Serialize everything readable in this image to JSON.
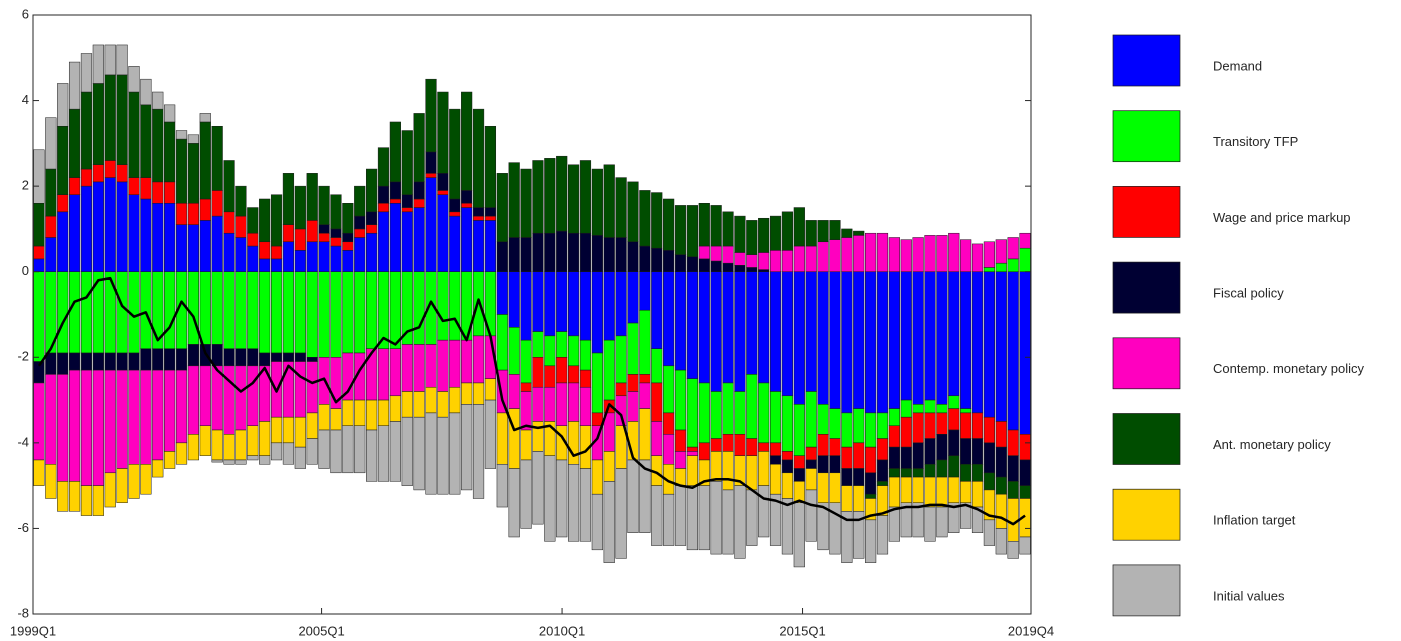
{
  "chart_data": {
    "type": "stacked_bar",
    "categories": [
      "1999Q1",
      null,
      null,
      null,
      null,
      null,
      null,
      null,
      null,
      null,
      null,
      null,
      null,
      null,
      null,
      null,
      null,
      null,
      null,
      null,
      null,
      null,
      null,
      null,
      "2005Q1",
      null,
      null,
      null,
      null,
      null,
      null,
      null,
      null,
      null,
      null,
      null,
      null,
      null,
      null,
      null,
      null,
      null,
      null,
      null,
      "2010Q1",
      null,
      null,
      null,
      null,
      null,
      null,
      null,
      null,
      null,
      null,
      null,
      null,
      null,
      null,
      null,
      null,
      null,
      null,
      null,
      "2015Q1",
      null,
      null,
      null,
      null,
      null,
      null,
      null,
      null,
      null,
      null,
      null,
      null,
      null,
      null,
      null,
      null,
      null,
      null,
      "2019Q4"
    ],
    "ylim": [
      -8,
      6
    ],
    "yticks": [
      -8,
      -6,
      -4,
      -2,
      0,
      2,
      4,
      6
    ],
    "legend": "right",
    "series": [
      {
        "name": "Demand",
        "color": "#0000ff",
        "values": [
          0.3,
          0.8,
          1.4,
          1.8,
          2.0,
          2.1,
          2.2,
          2.1,
          1.8,
          1.7,
          1.6,
          1.6,
          1.1,
          1.1,
          1.2,
          1.3,
          0.9,
          0.8,
          0.6,
          0.3,
          0.3,
          0.7,
          0.5,
          0.7,
          0.7,
          0.6,
          0.5,
          0.8,
          0.9,
          1.4,
          1.6,
          1.4,
          1.5,
          2.2,
          1.8,
          1.3,
          1.5,
          1.2,
          1.2,
          -1.0,
          -1.3,
          -1.6,
          -1.4,
          -1.5,
          -1.4,
          -1.5,
          -1.6,
          -1.9,
          -1.6,
          -1.5,
          -1.2,
          -0.9,
          -1.8,
          -2.2,
          -2.3,
          -2.5,
          -2.6,
          -2.8,
          -2.6,
          -2.8,
          -2.4,
          -2.6,
          -2.8,
          -2.9,
          -3.1,
          -2.8,
          -3.1,
          -3.2,
          -3.3,
          -3.2,
          -3.3,
          -3.3,
          -3.2,
          -3.0,
          -3.1,
          -3.0,
          -3.1,
          -2.9,
          -3.2,
          -3.3,
          -3.4,
          -3.5,
          -3.7,
          -3.8
        ]
      },
      {
        "name": "Transitory TFP",
        "color": "#00ff00",
        "values": [
          -2.1,
          -1.9,
          -1.9,
          -1.9,
          -1.9,
          -1.9,
          -1.9,
          -1.9,
          -1.9,
          -1.8,
          -1.8,
          -1.8,
          -1.8,
          -1.7,
          -1.7,
          -1.7,
          -1.8,
          -1.8,
          -1.8,
          -1.9,
          -1.9,
          -1.9,
          -1.9,
          -2.0,
          -2.0,
          -2.0,
          -1.9,
          -1.9,
          -1.8,
          -1.8,
          -1.8,
          -1.7,
          -1.7,
          -1.7,
          -1.6,
          -1.6,
          -1.6,
          -1.5,
          -1.5,
          -1.3,
          -1.1,
          -1.0,
          -0.6,
          -0.7,
          -0.6,
          -0.7,
          -0.7,
          -1.4,
          -1.4,
          -1.1,
          -1.2,
          -1.5,
          -0.8,
          -1.1,
          -1.4,
          -1.6,
          -1.4,
          -1.1,
          -1.2,
          -1.0,
          -1.5,
          -1.4,
          -1.2,
          -1.3,
          -1.2,
          -1.3,
          -0.7,
          -0.7,
          -0.8,
          -0.8,
          -0.8,
          -0.6,
          -0.4,
          -0.4,
          -0.2,
          -0.3,
          -0.2,
          -0.3,
          -0.1,
          0,
          0.1,
          0.2,
          0.3,
          0.55
        ]
      },
      {
        "name": "Wage and price markup",
        "color": "#ff0000",
        "values": [
          0.3,
          0.5,
          0.4,
          0.4,
          0.4,
          0.4,
          0.4,
          0.4,
          0.4,
          0.5,
          0.5,
          0.5,
          0.5,
          0.5,
          0.5,
          0.6,
          0.5,
          0.5,
          0.3,
          0.4,
          0.3,
          0.4,
          0.5,
          0.5,
          0.2,
          0.2,
          0.2,
          0.2,
          0.2,
          0.2,
          0.1,
          0.1,
          0.2,
          0.1,
          0.1,
          0.1,
          0.1,
          0.1,
          0.1,
          0,
          0,
          -0.2,
          -0.7,
          -0.5,
          -0.6,
          -0.4,
          -0.4,
          -0.3,
          -0.3,
          -0.3,
          -0.4,
          -0.2,
          -0.9,
          -0.5,
          -0.5,
          -0.1,
          -0.4,
          -0.3,
          -0.4,
          -0.5,
          -0.4,
          -0.2,
          -0.3,
          -0.2,
          -0.3,
          -0.3,
          -0.5,
          -0.4,
          -0.5,
          -0.6,
          -0.6,
          -0.5,
          -0.5,
          -0.7,
          -0.7,
          -0.6,
          -0.5,
          -0.5,
          -0.6,
          -0.6,
          -0.6,
          -0.6,
          -0.6,
          -0.6
        ]
      },
      {
        "name": "Fiscal policy",
        "color": "#000033",
        "values": [
          -0.5,
          -0.5,
          -0.5,
          -0.4,
          -0.4,
          -0.4,
          -0.4,
          -0.4,
          -0.4,
          -0.5,
          -0.5,
          -0.5,
          -0.5,
          -0.5,
          -0.5,
          -0.5,
          -0.4,
          -0.4,
          -0.4,
          -0.3,
          -0.2,
          -0.2,
          -0.2,
          -0.1,
          0.2,
          0.2,
          0.2,
          0.3,
          0.3,
          0.4,
          0.4,
          0.3,
          0.4,
          0.5,
          0.4,
          0.3,
          0.3,
          0.2,
          0.2,
          0.7,
          0.8,
          0.8,
          0.9,
          0.9,
          0.95,
          0.9,
          0.9,
          0.85,
          0.8,
          0.8,
          0.7,
          0.6,
          0.55,
          0.5,
          0.4,
          0.35,
          0.3,
          0.25,
          0.2,
          0.15,
          0.1,
          0.05,
          -0.2,
          -0.3,
          -0.3,
          -0.2,
          -0.4,
          -0.4,
          -0.4,
          -0.4,
          -0.5,
          -0.5,
          -0.5,
          -0.5,
          -0.6,
          -0.6,
          -0.6,
          -0.6,
          -0.6,
          -0.6,
          -0.7,
          -0.7,
          -0.6,
          -0.6
        ]
      },
      {
        "name": "Contemp. monetary policy",
        "color": "#ff00bf",
        "values": [
          -1.8,
          -2.1,
          -2.5,
          -2.6,
          -2.7,
          -2.7,
          -2.4,
          -2.3,
          -2.2,
          -2.2,
          -2.1,
          -1.9,
          -1.7,
          -1.6,
          -1.4,
          -1.5,
          -1.6,
          -1.5,
          -1.4,
          -1.3,
          -1.3,
          -1.3,
          -1.3,
          -1.2,
          -1.1,
          -1.2,
          -1.1,
          -1.1,
          -1.2,
          -1.2,
          -1.1,
          -1.1,
          -1.1,
          -1.0,
          -1.2,
          -1.1,
          -1.0,
          -1.1,
          -1.0,
          -1.0,
          -0.8,
          -0.9,
          -0.8,
          -0.8,
          -1.0,
          -0.9,
          -0.9,
          -0.8,
          -0.9,
          -0.7,
          -0.7,
          -0.6,
          -0.8,
          -0.7,
          -0.4,
          -0.1,
          0.3,
          0.35,
          0.4,
          0.3,
          0.3,
          0.4,
          0.5,
          0.5,
          0.6,
          0.6,
          0.7,
          0.75,
          0.8,
          0.85,
          0.9,
          0.9,
          0.8,
          0.75,
          0.8,
          0.85,
          0.85,
          0.9,
          0.75,
          0.65,
          0.6,
          0.55,
          0.5,
          0.35
        ]
      },
      {
        "name": "Ant. monetary policy",
        "color": "#004d00",
        "values": [
          1.0,
          1.1,
          1.6,
          1.6,
          1.8,
          1.9,
          2.0,
          2.1,
          2.0,
          1.7,
          1.7,
          1.4,
          1.5,
          1.4,
          1.8,
          1.5,
          1.2,
          0.7,
          0.6,
          1.0,
          1.2,
          1.2,
          1.0,
          1.1,
          0.9,
          0.8,
          0.7,
          0.7,
          1.0,
          0.9,
          1.4,
          1.5,
          1.6,
          1.7,
          1.9,
          2.1,
          2.3,
          2.3,
          1.9,
          1.6,
          1.75,
          1.6,
          1.7,
          1.75,
          1.75,
          1.6,
          1.7,
          1.55,
          1.7,
          1.4,
          1.4,
          1.3,
          1.3,
          1.2,
          1.15,
          1.2,
          1.0,
          0.95,
          0.8,
          0.85,
          0.8,
          0.8,
          0.8,
          0.9,
          0.9,
          0.6,
          0.5,
          0.45,
          0.2,
          0.1,
          -0.1,
          -0.1,
          -0.2,
          -0.2,
          -0.2,
          -0.3,
          -0.4,
          -0.5,
          -0.4,
          -0.4,
          -0.4,
          -0.4,
          -0.4,
          -0.3
        ]
      },
      {
        "name": "Inflation target",
        "color": "#ffd200",
        "values": [
          -0.6,
          -0.8,
          -0.7,
          -0.7,
          -0.7,
          -0.7,
          -0.8,
          -0.8,
          -0.8,
          -0.7,
          -0.4,
          -0.4,
          -0.5,
          -0.6,
          -0.7,
          -0.7,
          -0.6,
          -0.7,
          -0.7,
          -0.8,
          -0.6,
          -0.6,
          -0.7,
          -0.6,
          -0.6,
          -0.5,
          -0.6,
          -0.6,
          -0.7,
          -0.6,
          -0.6,
          -0.6,
          -0.6,
          -0.6,
          -0.6,
          -0.6,
          -0.5,
          -0.5,
          -0.5,
          -1.2,
          -1.4,
          -0.7,
          -0.7,
          -0.8,
          -0.8,
          -1.0,
          -1.0,
          -0.8,
          -0.7,
          -1.0,
          -0.9,
          -1.2,
          -0.7,
          -0.7,
          -0.4,
          -0.7,
          -0.6,
          -0.7,
          -0.9,
          -0.7,
          -0.8,
          -0.8,
          -0.7,
          -0.6,
          -0.5,
          -0.5,
          -0.7,
          -0.7,
          -0.6,
          -0.6,
          -0.5,
          -0.7,
          -0.7,
          -0.6,
          -0.6,
          -0.7,
          -0.7,
          -0.6,
          -0.5,
          -0.6,
          -0.7,
          -0.8,
          -1.0,
          -0.9
        ]
      },
      {
        "name": "Initial values",
        "color": "#b3b3b3",
        "values": [
          1.25,
          1.2,
          1.0,
          1.1,
          0.9,
          0.9,
          0.7,
          0.7,
          0.6,
          0.6,
          0.4,
          0.4,
          0.2,
          0.2,
          0.2,
          -0.05,
          -0.1,
          -0.1,
          -0.1,
          -0.2,
          -0.4,
          -0.5,
          -0.5,
          -0.6,
          -0.9,
          -1.0,
          -1.1,
          -1.1,
          -1.2,
          -1.3,
          -1.4,
          -1.6,
          -1.7,
          -1.9,
          -1.8,
          -1.9,
          -2.0,
          -2.2,
          -1.6,
          -1.0,
          -1.6,
          -1.6,
          -1.7,
          -2.0,
          -1.8,
          -1.8,
          -1.7,
          -1.3,
          -1.9,
          -2.1,
          -1.7,
          -1.7,
          -1.4,
          -1.2,
          -1.4,
          -1.5,
          -1.5,
          -1.7,
          -1.5,
          -1.7,
          -1.3,
          -1.2,
          -1.2,
          -1.3,
          -1.5,
          -1.2,
          -1.1,
          -1.2,
          -1.2,
          -1.1,
          -1.0,
          -0.9,
          -0.8,
          -0.8,
          -0.8,
          -0.8,
          -0.7,
          -0.7,
          -0.6,
          -0.6,
          -0.6,
          -0.6,
          -0.4,
          -0.4
        ]
      }
    ],
    "line": {
      "color": "#000000",
      "values": [
        -2.2,
        -1.8,
        -1.2,
        -0.7,
        -0.6,
        -0.2,
        -0.15,
        -0.8,
        -1.05,
        -0.95,
        -1.6,
        -1.3,
        -0.7,
        -1.05,
        -1.9,
        -2.3,
        -2.55,
        -2.8,
        -2.6,
        -2.25,
        -2.8,
        -2.2,
        -2.45,
        -2.6,
        -2.5,
        -3.05,
        -2.8,
        -2.3,
        -1.9,
        -1.55,
        -1.7,
        -1.4,
        -1.3,
        -0.7,
        -1.15,
        -1.1,
        -1.6,
        -0.65,
        -1.5,
        -3.0,
        -3.7,
        -3.6,
        -3.65,
        -3.6,
        -3.85,
        -4.3,
        -4.2,
        -3.9,
        -3.1,
        -3.35,
        -4.35,
        -4.6,
        -4.7,
        -4.9,
        -5.0,
        -5.05,
        -4.9,
        -4.85,
        -4.85,
        -4.9,
        -5.1,
        -5.3,
        -5.35,
        -5.45,
        -5.35,
        -5.45,
        -5.5,
        -5.65,
        -5.8,
        -5.8,
        -5.7,
        -5.65,
        -5.55,
        -5.5,
        -5.5,
        -5.45,
        -5.45,
        -5.5,
        -5.45,
        -5.55,
        -5.7,
        -5.75,
        -5.9,
        -5.7
      ]
    }
  }
}
